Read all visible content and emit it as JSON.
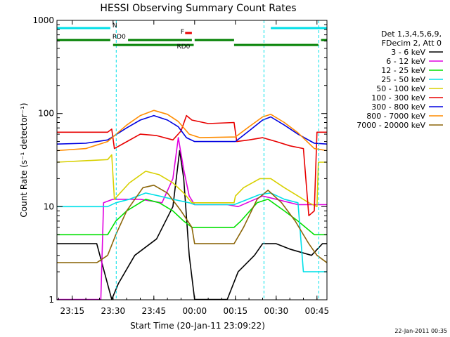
{
  "chart_data": {
    "type": "line",
    "title": "HESSI Observing Summary Count Rates",
    "xlabel": "Start Time (20-Jan-11 23:09:22)",
    "ylabel": "Count Rate (s⁻¹ detector⁻¹)",
    "yscale": "log",
    "ylim": [
      1,
      1000
    ],
    "xlim": [
      "23:09:22",
      "00:48:40"
    ],
    "x_ticks": [
      "23:15",
      "23:30",
      "23:45",
      "00:00",
      "00:15",
      "00:30",
      "00:45"
    ],
    "y_ticks": [
      "1",
      "10",
      "100",
      "1000"
    ],
    "grid": false,
    "legend_position": "right",
    "legend_header": [
      "Det 1,3,4,5,6,9,",
      "FDecim 2, Att 0"
    ],
    "flags": {
      "N": {
        "label": "N",
        "color": "#00e0e8",
        "segments": [
          [
            "23:09:22",
            "23:29:00"
          ],
          [
            "00:28:00",
            "00:48:40"
          ]
        ]
      },
      "F": {
        "label": "F",
        "color": "#e80000",
        "segments": [
          [
            "23:56:30",
            "23:59:00"
          ]
        ]
      },
      "RD0_upper": {
        "label": "RD0",
        "color": "#008000",
        "segments": [
          [
            "23:09:22",
            "23:29:00"
          ],
          [
            "23:35:30",
            "23:59:00"
          ],
          [
            "00:00:00",
            "00:14:30"
          ],
          [
            "00:46:30",
            "00:48:40"
          ]
        ]
      },
      "RD0_lower": {
        "label": "RD0",
        "color": "#008000",
        "segments": [
          [
            "23:30:00",
            "23:59:40"
          ],
          [
            "00:14:30",
            "00:45:30"
          ]
        ]
      }
    },
    "night_markers": [
      "23:31:10",
      "00:25:30",
      "00:45:40"
    ],
    "series": [
      {
        "name": "3 - 6 keV",
        "color": "#000000"
      },
      {
        "name": "6 - 12 keV",
        "color": "#e000e0"
      },
      {
        "name": "12 - 25 keV",
        "color": "#00e000"
      },
      {
        "name": "25 - 50 keV",
        "color": "#00e0e8"
      },
      {
        "name": "50 - 100 keV",
        "color": "#d8d000"
      },
      {
        "name": "100 - 300 keV",
        "color": "#e80000"
      },
      {
        "name": "300 - 800 keV",
        "color": "#0000e0"
      },
      {
        "name": "800 - 7000 keV",
        "color": "#ff8c00"
      },
      {
        "name": "7000 - 20000 keV",
        "color": "#8b6508"
      }
    ],
    "series_points": [
      [
        [
          "23:09:22",
          4
        ],
        [
          "23:24:00",
          4
        ],
        [
          "23:29:30",
          1
        ],
        [
          "23:32:00",
          1.5
        ],
        [
          "23:38:00",
          3
        ],
        [
          "23:46:00",
          4.5
        ],
        [
          "23:52:00",
          10
        ],
        [
          "23:54:30",
          40
        ],
        [
          "23:56:00",
          20
        ],
        [
          "23:58:00",
          3
        ],
        [
          "00:00:00",
          1
        ],
        [
          "00:12:00",
          1
        ],
        [
          "00:16:00",
          2
        ],
        [
          "00:22:00",
          3
        ],
        [
          "00:25:00",
          4
        ],
        [
          "00:30:00",
          4
        ],
        [
          "00:35:00",
          3.5
        ],
        [
          "00:43:00",
          3
        ],
        [
          "00:47:00",
          4
        ],
        [
          "00:48:40",
          4
        ]
      ],
      [
        [
          "23:09:22",
          1
        ],
        [
          "23:25:30",
          1
        ],
        [
          "23:26:30",
          11
        ],
        [
          "23:30:00",
          12
        ],
        [
          "23:40:00",
          12
        ],
        [
          "23:48:00",
          11
        ],
        [
          "23:52:00",
          20
        ],
        [
          "23:54:00",
          55
        ],
        [
          "23:56:00",
          25
        ],
        [
          "23:58:00",
          13
        ],
        [
          "00:00:00",
          10.5
        ],
        [
          "00:12:00",
          10.5
        ],
        [
          "00:16:00",
          10
        ],
        [
          "00:25:00",
          13
        ],
        [
          "00:30:00",
          12
        ],
        [
          "00:38:00",
          10.5
        ],
        [
          "00:48:40",
          10.5
        ]
      ],
      [
        [
          "23:09:22",
          5
        ],
        [
          "23:28:00",
          5
        ],
        [
          "23:31:00",
          7
        ],
        [
          "23:35:00",
          9
        ],
        [
          "23:42:00",
          12
        ],
        [
          "23:47:00",
          11
        ],
        [
          "23:52:00",
          9
        ],
        [
          "23:56:00",
          7
        ],
        [
          "23:59:00",
          6
        ],
        [
          "00:14:30",
          6
        ],
        [
          "00:17:00",
          7
        ],
        [
          "00:23:00",
          11
        ],
        [
          "00:27:00",
          12
        ],
        [
          "00:33:00",
          9
        ],
        [
          "00:38:00",
          7
        ],
        [
          "00:44:00",
          5
        ],
        [
          "00:48:40",
          5
        ]
      ],
      [
        [
          "23:09:22",
          10
        ],
        [
          "23:28:00",
          10
        ],
        [
          "23:31:00",
          11
        ],
        [
          "23:36:00",
          12
        ],
        [
          "23:42:00",
          14
        ],
        [
          "23:47:00",
          13
        ],
        [
          "23:52:00",
          12
        ],
        [
          "23:58:00",
          11
        ],
        [
          "00:00:00",
          10.5
        ],
        [
          "00:14:30",
          10.5
        ],
        [
          "00:18:00",
          11.5
        ],
        [
          "00:24:00",
          13.5
        ],
        [
          "00:28:00",
          14
        ],
        [
          "00:33:00",
          12
        ],
        [
          "00:38:00",
          11
        ],
        [
          "00:40:00",
          2
        ],
        [
          "00:45:00",
          2
        ],
        [
          "00:48:40",
          2
        ]
      ],
      [
        [
          "23:09:22",
          30
        ],
        [
          "23:28:00",
          32
        ],
        [
          "23:29:30",
          36
        ],
        [
          "23:30:30",
          12
        ],
        [
          "23:36:00",
          18
        ],
        [
          "23:42:00",
          24
        ],
        [
          "23:47:00",
          22
        ],
        [
          "23:52:00",
          18
        ],
        [
          "23:56:00",
          14
        ],
        [
          "23:59:00",
          11
        ],
        [
          "00:14:30",
          11
        ],
        [
          "00:15:00",
          13
        ],
        [
          "00:18:00",
          16
        ],
        [
          "00:24:00",
          20
        ],
        [
          "00:28:00",
          20
        ],
        [
          "00:33:00",
          16
        ],
        [
          "00:38:00",
          13
        ],
        [
          "00:42:00",
          11
        ],
        [
          "00:45:00",
          10
        ],
        [
          "00:45:30",
          30
        ],
        [
          "00:48:40",
          30
        ]
      ],
      [
        [
          "23:09:22",
          63
        ],
        [
          "23:28:00",
          63
        ],
        [
          "23:29:30",
          68
        ],
        [
          "23:30:30",
          42
        ],
        [
          "23:34:00",
          48
        ],
        [
          "23:40:00",
          60
        ],
        [
          "23:46:00",
          58
        ],
        [
          "23:52:00",
          52
        ],
        [
          "23:55:00",
          65
        ],
        [
          "23:57:00",
          95
        ],
        [
          "23:59:00",
          85
        ],
        [
          "00:05:00",
          78
        ],
        [
          "00:14:30",
          80
        ],
        [
          "00:15:30",
          50
        ],
        [
          "00:20:00",
          52
        ],
        [
          "00:25:00",
          55
        ],
        [
          "00:30:00",
          50
        ],
        [
          "00:35:00",
          45
        ],
        [
          "00:40:00",
          42
        ],
        [
          "00:42:00",
          8
        ],
        [
          "00:44:00",
          9
        ],
        [
          "00:45:00",
          63
        ],
        [
          "00:48:40",
          63
        ]
      ],
      [
        [
          "23:09:22",
          47
        ],
        [
          "23:20:00",
          48
        ],
        [
          "23:28:00",
          52
        ],
        [
          "23:35:00",
          70
        ],
        [
          "23:40:00",
          85
        ],
        [
          "23:45:00",
          95
        ],
        [
          "23:50:00",
          85
        ],
        [
          "23:54:00",
          72
        ],
        [
          "23:57:00",
          55
        ],
        [
          "00:00:00",
          50
        ],
        [
          "00:15:00",
          50
        ],
        [
          "00:20:00",
          65
        ],
        [
          "00:25:00",
          85
        ],
        [
          "00:28:00",
          92
        ],
        [
          "00:33:00",
          75
        ],
        [
          "00:38:00",
          60
        ],
        [
          "00:44:00",
          48
        ],
        [
          "00:48:40",
          47
        ]
      ],
      [
        [
          "23:09:22",
          40
        ],
        [
          "23:20:00",
          42
        ],
        [
          "23:28:00",
          50
        ],
        [
          "23:35:00",
          75
        ],
        [
          "23:40:00",
          95
        ],
        [
          "23:45:00",
          108
        ],
        [
          "23:50:00",
          98
        ],
        [
          "23:54:00",
          82
        ],
        [
          "23:58:00",
          60
        ],
        [
          "00:02:00",
          55
        ],
        [
          "00:15:00",
          56
        ],
        [
          "00:20:00",
          72
        ],
        [
          "00:25:00",
          92
        ],
        [
          "00:28:00",
          98
        ],
        [
          "00:33:00",
          80
        ],
        [
          "00:38:00",
          62
        ],
        [
          "00:44:00",
          42
        ],
        [
          "00:48:40",
          40
        ]
      ],
      [
        [
          "23:09:22",
          2.5
        ],
        [
          "23:24:00",
          2.5
        ],
        [
          "23:28:00",
          3
        ],
        [
          "23:31:00",
          5
        ],
        [
          "23:35:00",
          9
        ],
        [
          "23:41:00",
          16
        ],
        [
          "23:45:00",
          17
        ],
        [
          "23:50:00",
          14
        ],
        [
          "23:55:00",
          9
        ],
        [
          "23:59:00",
          6
        ],
        [
          "00:00:00",
          4
        ],
        [
          "00:14:30",
          4
        ],
        [
          "00:18:00",
          6
        ],
        [
          "00:23:00",
          12
        ],
        [
          "00:27:00",
          15
        ],
        [
          "00:32:00",
          11
        ],
        [
          "00:37:00",
          7
        ],
        [
          "00:42:00",
          4
        ],
        [
          "00:45:00",
          3
        ],
        [
          "00:48:40",
          2.5
        ]
      ]
    ],
    "timestamp": "22-Jan-2011 00:35"
  }
}
